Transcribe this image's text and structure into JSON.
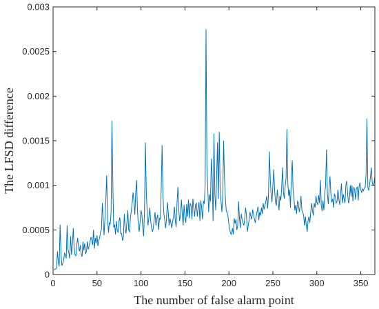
{
  "chart_data": {
    "type": "line",
    "xlabel": "The number of false alarm point",
    "ylabel": "The LFSD difference",
    "xlim": [
      0,
      366
    ],
    "ylim": [
      0,
      0.003
    ],
    "xticks": [
      0,
      50,
      100,
      150,
      200,
      250,
      300,
      350
    ],
    "xtick_labels": [
      "0",
      "50",
      "100",
      "150",
      "200",
      "250",
      "300",
      "350"
    ],
    "yticks": [
      0,
      0.0005,
      0.001,
      0.0015,
      0.002,
      0.0025,
      0.003
    ],
    "ytick_labels": [
      "0",
      "0.0005",
      "0.001",
      "0.0015",
      "0.002",
      "0.0025",
      "0.003"
    ],
    "grid": false,
    "series_color": "#0072BD",
    "series": [
      {
        "x": [
          1,
          2,
          3,
          4,
          5,
          6,
          7,
          8,
          9,
          10,
          11,
          12,
          13,
          14,
          15,
          16,
          17,
          18,
          19,
          20,
          21,
          22,
          23,
          24,
          25,
          26,
          27,
          28,
          29,
          30,
          31,
          32,
          33,
          34,
          35,
          36,
          37,
          38,
          39,
          40,
          41,
          42,
          43,
          44,
          45,
          46,
          47,
          48,
          49,
          50,
          51,
          52,
          53,
          54,
          55,
          56,
          57,
          58,
          59,
          60,
          61,
          62,
          63,
          64,
          65,
          66,
          67,
          68,
          69,
          70,
          71,
          72,
          73,
          74,
          75,
          76,
          77,
          78,
          79,
          80,
          81,
          82,
          83,
          84,
          85,
          86,
          87,
          88,
          89,
          90,
          91,
          92,
          93,
          94,
          95,
          96,
          97,
          98,
          99,
          100,
          101,
          102,
          103,
          104,
          105,
          106,
          107,
          108,
          109,
          110,
          111,
          112,
          113,
          114,
          115,
          116,
          117,
          118,
          119,
          120,
          121,
          122,
          123,
          124,
          125,
          126,
          127,
          128,
          129,
          130,
          131,
          132,
          133,
          134,
          135,
          136,
          137,
          138,
          139,
          140,
          141,
          142,
          143,
          144,
          145,
          146,
          147,
          148,
          149,
          150,
          151,
          152,
          153,
          154,
          155,
          156,
          157,
          158,
          159,
          160,
          161,
          162,
          163,
          164,
          165,
          166,
          167,
          168,
          169,
          170,
          171,
          172,
          173,
          174,
          175,
          176,
          177,
          178,
          179,
          180,
          181,
          182,
          183,
          184,
          185,
          186,
          187,
          188,
          189,
          190,
          191,
          192,
          193,
          194,
          195,
          196,
          197,
          198,
          199,
          200,
          201,
          202,
          203,
          204,
          205,
          206,
          207,
          208,
          209,
          210,
          211,
          212,
          213,
          214,
          215,
          216,
          217,
          218,
          219,
          220,
          221,
          222,
          223,
          224,
          225,
          226,
          227,
          228,
          229,
          230,
          231,
          232,
          233,
          234,
          235,
          236,
          237,
          238,
          239,
          240,
          241,
          242,
          243,
          244,
          245,
          246,
          247,
          248,
          249,
          250,
          251,
          252,
          253,
          254,
          255,
          256,
          257,
          258,
          259,
          260,
          261,
          262,
          263,
          264,
          265,
          266,
          267,
          268,
          269,
          270,
          271,
          272,
          273,
          274,
          275,
          276,
          277,
          278,
          279,
          280,
          281,
          282,
          283,
          284,
          285,
          286,
          287,
          288,
          289,
          290,
          291,
          292,
          293,
          294,
          295,
          296,
          297,
          298,
          299,
          300,
          301,
          302,
          303,
          304,
          305,
          306,
          307,
          308,
          309,
          310,
          311,
          312,
          313,
          314,
          315,
          316,
          317,
          318,
          319,
          320,
          321,
          322,
          323,
          324,
          325,
          326,
          327,
          328,
          329,
          330,
          331,
          332,
          333,
          334,
          335,
          336,
          337,
          338,
          339,
          340,
          341,
          342,
          343,
          344,
          345,
          346,
          347,
          348,
          349,
          350,
          351,
          352,
          353,
          354,
          355,
          356,
          357,
          358,
          359,
          360,
          361,
          362,
          363,
          364,
          365,
          366
        ],
        "y": [
          5e-05,
          6e-05,
          6e-05,
          7e-05,
          0.00026,
          0.00014,
          9e-05,
          0.00056,
          0.00024,
          0.0001,
          0.00012,
          0.00016,
          0.00024,
          0.00022,
          0.00018,
          0.00055,
          0.00028,
          0.00024,
          0.00018,
          0.00043,
          0.00022,
          0.00034,
          0.00052,
          0.0003,
          0.00022,
          0.00021,
          0.00034,
          0.00041,
          0.0003,
          0.00026,
          0.00033,
          0.00023,
          0.0002,
          0.00037,
          0.00027,
          0.00035,
          0.00023,
          0.00026,
          0.00037,
          0.00028,
          0.00032,
          0.00036,
          0.00042,
          0.00039,
          0.00033,
          0.0005,
          0.00029,
          0.00041,
          0.00035,
          0.00044,
          0.00032,
          0.00038,
          0.00041,
          0.00048,
          0.0005,
          0.0008,
          0.00063,
          0.00044,
          0.00063,
          0.00084,
          0.00111,
          0.00064,
          0.00047,
          0.00058,
          0.00056,
          0.0007,
          0.00172,
          0.001,
          0.00053,
          0.00056,
          0.00045,
          0.0006,
          0.0005,
          0.00047,
          0.0006,
          0.00064,
          0.00046,
          0.00046,
          0.00038,
          0.00042,
          0.00068,
          0.00052,
          0.00046,
          0.00059,
          0.00072,
          0.0005,
          0.00048,
          0.00064,
          0.00072,
          0.0008,
          0.00092,
          0.00082,
          0.00067,
          0.00091,
          0.00106,
          0.00072,
          0.00055,
          0.00048,
          0.00059,
          0.00072,
          0.00067,
          0.00054,
          0.00043,
          0.0007,
          0.00148,
          0.00093,
          0.00072,
          0.00055,
          0.00064,
          0.00075,
          0.0006,
          0.00053,
          0.00048,
          0.00052,
          0.00061,
          0.0007,
          0.00055,
          0.00063,
          0.00067,
          0.0005,
          0.00063,
          0.00062,
          0.00095,
          0.00145,
          0.00088,
          0.00068,
          0.00062,
          0.00052,
          0.00062,
          0.00081,
          0.0007,
          0.00055,
          0.00063,
          0.00058,
          0.00052,
          0.0006,
          0.00064,
          0.00076,
          0.00061,
          0.00053,
          0.0008,
          0.00098,
          0.00072,
          0.0006,
          0.00068,
          0.00084,
          0.00066,
          0.00055,
          0.00078,
          0.00065,
          0.00058,
          0.00079,
          0.00065,
          0.00084,
          0.00063,
          0.0008,
          0.00077,
          0.00062,
          0.00085,
          0.00074,
          0.00065,
          0.00078,
          0.0008,
          0.00065,
          0.00075,
          0.00081,
          0.0006,
          0.00083,
          0.00075,
          0.00062,
          0.00082,
          0.0008,
          0.001,
          0.00275,
          0.0012,
          0.00095,
          0.0007,
          0.0009,
          0.00082,
          0.0013,
          0.0011,
          0.0006,
          0.00158,
          0.0009,
          0.00072,
          0.00108,
          0.00148,
          0.00085,
          0.0016,
          0.00098,
          0.00082,
          0.0007,
          0.0009,
          0.0015,
          0.00108,
          0.00085,
          0.00071,
          0.0007,
          0.00065,
          0.00056,
          0.0005,
          0.00046,
          0.00045,
          0.00052,
          0.00045,
          0.00063,
          0.00057,
          0.00062,
          0.0005,
          0.00055,
          0.00082,
          0.00063,
          0.00052,
          0.00068,
          0.00062,
          0.00058,
          0.00055,
          0.00063,
          0.00075,
          0.00066,
          0.00048,
          0.00055,
          0.00061,
          0.0007,
          0.00065,
          0.00062,
          0.00073,
          0.00068,
          0.00062,
          0.00058,
          0.00065,
          0.0007,
          0.00076,
          0.00061,
          0.0007,
          0.00066,
          0.00075,
          0.00068,
          0.0008,
          0.00073,
          0.00077,
          0.00082,
          0.00088,
          0.00074,
          0.00088,
          0.00138,
          0.00107,
          0.0009,
          0.00081,
          0.001,
          0.00118,
          0.00095,
          0.00081,
          0.00077,
          0.00095,
          0.00085,
          0.00072,
          0.00088,
          0.00083,
          0.00096,
          0.0012,
          0.00092,
          0.00085,
          0.001,
          0.00108,
          0.00163,
          0.00102,
          0.00088,
          0.00095,
          0.00075,
          0.0011,
          0.00128,
          0.00095,
          0.00085,
          0.00072,
          0.00078,
          0.00068,
          0.00082,
          0.0008,
          0.0007,
          0.00076,
          0.00088,
          0.00072,
          0.0007,
          0.00066,
          0.00055,
          0.00065,
          0.00055,
          0.00048,
          0.0006,
          0.00065,
          0.00058,
          0.0007,
          0.0008,
          0.00072,
          0.00066,
          0.0008,
          0.00075,
          0.00088,
          0.00081,
          0.00078,
          0.00089,
          0.0008,
          0.00106,
          0.00078,
          0.00071,
          0.00083,
          0.00072,
          0.00091,
          0.001,
          0.0014,
          0.0009,
          0.00079,
          0.00098,
          0.0011,
          0.0009,
          0.00081,
          0.00085,
          0.00075,
          0.0009,
          0.00088,
          0.0008,
          0.00082,
          0.00095,
          0.00085,
          0.00078,
          0.0009,
          0.00102,
          0.0008,
          0.0009,
          0.00085,
          0.0008,
          0.001,
          0.00105,
          0.00091,
          0.0008,
          0.00084,
          0.001,
          0.00087,
          0.001,
          0.00082,
          0.00098,
          0.00095,
          0.00084,
          0.00097,
          0.00098,
          0.00083,
          0.00098,
          0.00103,
          0.00095,
          0.00092,
          0.00096,
          0.00094,
          0.00097,
          0.00098,
          0.00112,
          0.00175,
          0.00098,
          0.00094,
          0.001,
          0.0011,
          0.0012,
          0.00103,
          0.001,
          0.00102,
          0.0011
        ]
      }
    ]
  }
}
